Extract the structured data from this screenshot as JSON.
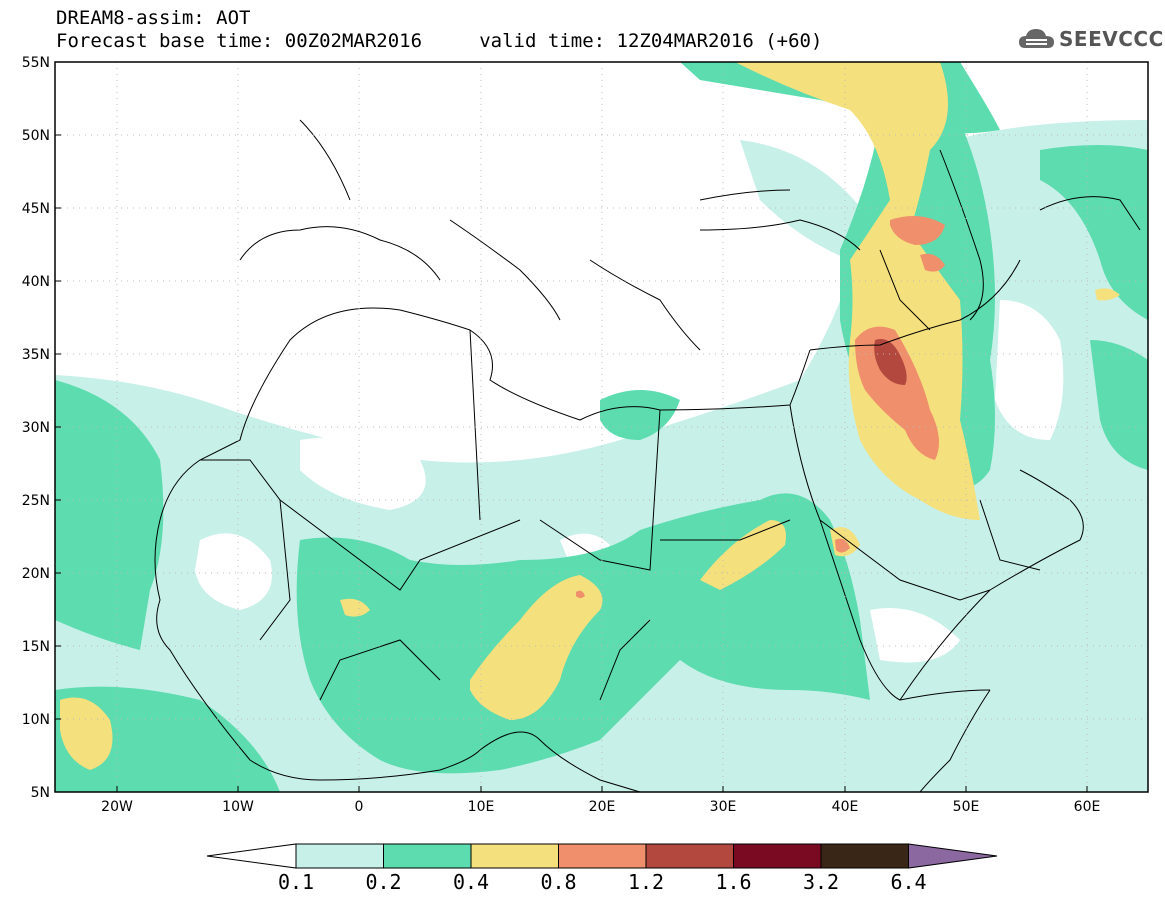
{
  "header": {
    "title_line1": "DREAM8-assim: AOT",
    "title_line2": "Forecast base time: 00Z02MAR2016     valid time: 12Z04MAR2016 (+60)",
    "logo_text": "SEEVCCC"
  },
  "map": {
    "lat_labels": [
      "55N",
      "50N",
      "45N",
      "40N",
      "35N",
      "30N",
      "25N",
      "20N",
      "15N",
      "10N",
      "5N"
    ],
    "lon_labels": [
      "20W",
      "10W",
      "0",
      "10E",
      "20E",
      "30E",
      "40E",
      "50E",
      "60E"
    ],
    "lon_range": [
      -25,
      65
    ],
    "lat_range": [
      5,
      55
    ]
  },
  "colorbar": {
    "labels": [
      "0.1",
      "0.2",
      "0.4",
      "0.8",
      "1.2",
      "1.6",
      "3.2",
      "6.4"
    ],
    "colors": [
      "#c7f0e8",
      "#5cdcaf",
      "#f5e07e",
      "#ef8f6b",
      "#b3483e",
      "#7a0a22",
      "#3a2616",
      "#8c68a0"
    ]
  }
}
